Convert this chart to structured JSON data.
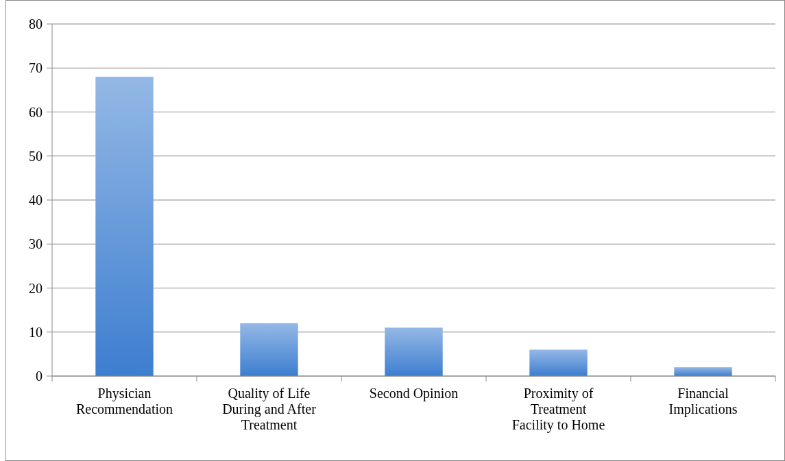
{
  "chart_data": {
    "type": "bar",
    "categories": [
      "Physician Recommendation",
      "Quality of Life During and After Treatment",
      "Second Opinion",
      "Proximity of Treatment Facility to Home",
      "Financial Implications"
    ],
    "values": [
      68,
      12,
      11,
      6,
      2
    ],
    "color": "#3d7ed0",
    "ylim": [
      0,
      80
    ],
    "yticks": [
      0,
      10,
      20,
      30,
      40,
      50,
      60,
      70,
      80
    ],
    "grid": "y"
  }
}
